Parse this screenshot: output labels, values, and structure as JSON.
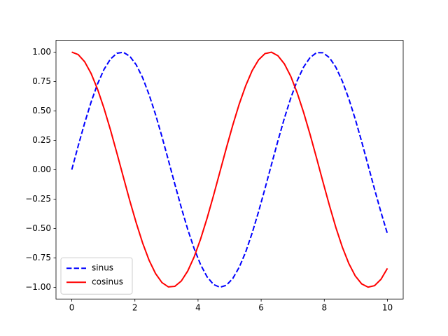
{
  "chart_data": {
    "type": "line",
    "x": [
      0,
      0.204,
      0.408,
      0.612,
      0.816,
      1.02,
      1.224,
      1.429,
      1.633,
      1.837,
      2.041,
      2.245,
      2.449,
      2.653,
      2.857,
      3.061,
      3.265,
      3.469,
      3.673,
      3.878,
      4.082,
      4.286,
      4.49,
      4.694,
      4.898,
      5.102,
      5.306,
      5.51,
      5.714,
      5.918,
      6.122,
      6.327,
      6.531,
      6.735,
      6.939,
      7.143,
      7.347,
      7.551,
      7.755,
      7.959,
      8.163,
      8.367,
      8.571,
      8.776,
      8.98,
      9.184,
      9.388,
      9.592,
      9.796,
      10
    ],
    "series": [
      {
        "name": "sinus",
        "color": "#0000ff",
        "dash": true,
        "values": [
          0,
          0.203,
          0.397,
          0.575,
          0.729,
          0.852,
          0.94,
          0.99,
          0.998,
          0.965,
          0.892,
          0.782,
          0.638,
          0.47,
          0.281,
          0.08,
          -0.123,
          -0.322,
          -0.507,
          -0.672,
          -0.808,
          -0.911,
          -0.976,
          -1.0,
          -0.983,
          -0.925,
          -0.829,
          -0.7,
          -0.539,
          -0.357,
          -0.16,
          0.044,
          0.245,
          0.437,
          0.61,
          0.758,
          0.874,
          0.954,
          0.995,
          0.994,
          0.953,
          0.871,
          0.753,
          0.604,
          0.431,
          0.239,
          0.037,
          -0.166,
          -0.362,
          -0.544
        ]
      },
      {
        "name": "cosinus",
        "color": "#ff0000",
        "dash": false,
        "values": [
          1,
          0.979,
          0.918,
          0.818,
          0.685,
          0.523,
          0.34,
          0.141,
          -0.062,
          -0.263,
          -0.452,
          -0.624,
          -0.77,
          -0.883,
          -0.96,
          -0.997,
          -0.992,
          -0.947,
          -0.862,
          -0.741,
          -0.589,
          -0.413,
          -0.22,
          -0.018,
          0.185,
          0.38,
          0.559,
          0.714,
          0.842,
          0.934,
          0.987,
          0.999,
          0.969,
          0.9,
          0.793,
          0.652,
          0.485,
          0.298,
          0.099,
          -0.105,
          -0.304,
          -0.492,
          -0.658,
          -0.797,
          -0.903,
          -0.971,
          -0.999,
          -0.986,
          -0.932,
          -0.839
        ]
      }
    ],
    "xlim": [
      -0.5,
      10.5
    ],
    "xticks": [
      0,
      2,
      4,
      6,
      8,
      10
    ],
    "ylim": [
      -1.1,
      1.1
    ],
    "yticks": [
      {
        "value": -1,
        "label": "−1.00"
      },
      {
        "value": -0.75,
        "label": "−0.75"
      },
      {
        "value": -0.5,
        "label": "−0.50"
      },
      {
        "value": -0.25,
        "label": "−0.25"
      },
      {
        "value": 0,
        "label": "0.00"
      },
      {
        "value": 0.25,
        "label": "0.25"
      },
      {
        "value": 0.5,
        "label": "0.50"
      },
      {
        "value": 0.75,
        "label": "0.75"
      },
      {
        "value": 1,
        "label": "1.00"
      }
    ],
    "grid": false,
    "legend": "lower left"
  }
}
